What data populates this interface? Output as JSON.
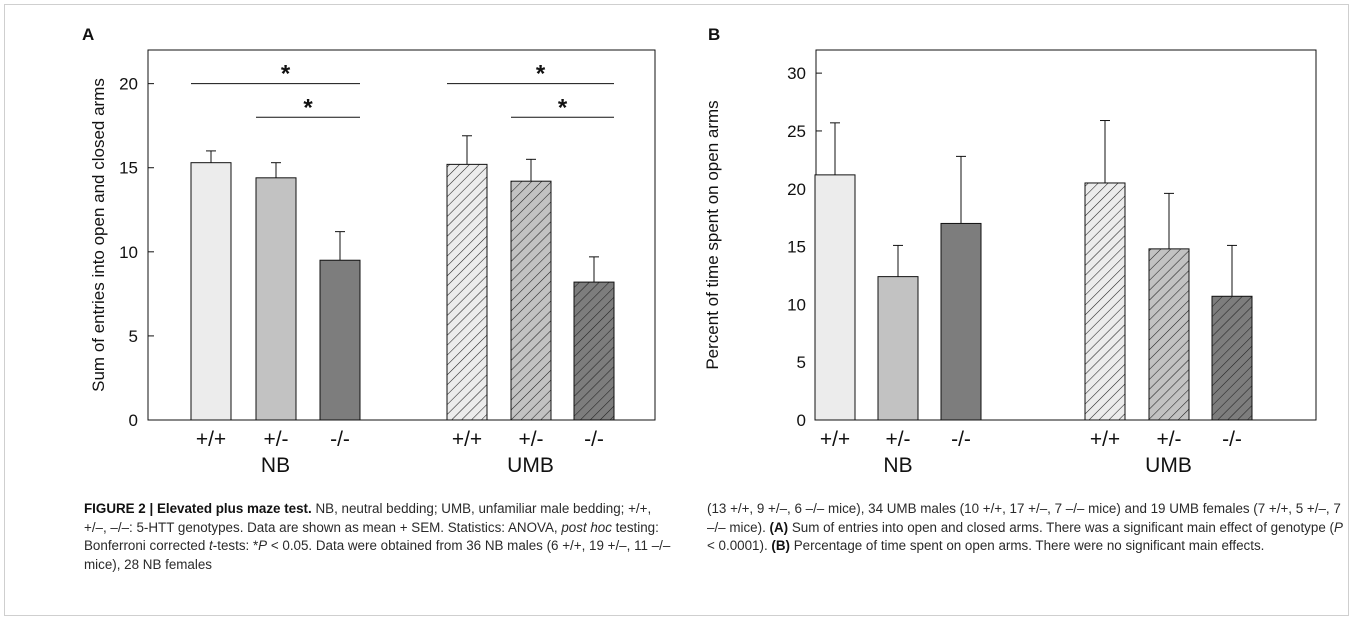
{
  "chart_data": [
    {
      "panel": "A",
      "type": "bar",
      "ylabel": "Sum of entries into open and closed arms",
      "xlabel": "",
      "ylim": [
        0,
        22
      ],
      "yticks": [
        0,
        5,
        10,
        15,
        20
      ],
      "groups": [
        "NB",
        "UMB"
      ],
      "categories": [
        "+/+",
        "+/-",
        "-/-"
      ],
      "bars": [
        {
          "group": "NB",
          "genotype": "+/+",
          "value": 15.3,
          "sem": 0.7,
          "fill": "#ececec",
          "hatch": false
        },
        {
          "group": "NB",
          "genotype": "+/-",
          "value": 14.4,
          "sem": 0.9,
          "fill": "#c2c2c2",
          "hatch": false
        },
        {
          "group": "NB",
          "genotype": "-/-",
          "value": 9.5,
          "sem": 1.7,
          "fill": "#7d7d7d",
          "hatch": false
        },
        {
          "group": "UMB",
          "genotype": "+/+",
          "value": 15.2,
          "sem": 1.7,
          "fill": "#ececec",
          "hatch": true
        },
        {
          "group": "UMB",
          "genotype": "+/-",
          "value": 14.2,
          "sem": 1.3,
          "fill": "#c2c2c2",
          "hatch": true
        },
        {
          "group": "UMB",
          "genotype": "-/-",
          "value": 8.2,
          "sem": 1.5,
          "fill": "#7d7d7d",
          "hatch": true
        }
      ],
      "significance": [
        {
          "group": "NB",
          "from": "+/+",
          "to": "-/-",
          "y": 20,
          "label": "*"
        },
        {
          "group": "NB",
          "from": "+/-",
          "to": "-/-",
          "y": 18,
          "label": "*"
        },
        {
          "group": "UMB",
          "from": "+/+",
          "to": "-/-",
          "y": 20,
          "label": "*"
        },
        {
          "group": "UMB",
          "from": "+/-",
          "to": "-/-",
          "y": 18,
          "label": "*"
        }
      ],
      "grid": false
    },
    {
      "panel": "B",
      "type": "bar",
      "ylabel": "Percent of time spent on open arms",
      "xlabel": "",
      "ylim": [
        0,
        32
      ],
      "yticks": [
        0,
        5,
        10,
        15,
        20,
        25,
        30
      ],
      "groups": [
        "NB",
        "UMB"
      ],
      "categories": [
        "+/+",
        "+/-",
        "-/-"
      ],
      "bars": [
        {
          "group": "NB",
          "genotype": "+/+",
          "value": 21.2,
          "sem": 4.5,
          "fill": "#ececec",
          "hatch": false
        },
        {
          "group": "NB",
          "genotype": "+/-",
          "value": 12.4,
          "sem": 2.7,
          "fill": "#c2c2c2",
          "hatch": false
        },
        {
          "group": "NB",
          "genotype": "-/-",
          "value": 17.0,
          "sem": 5.8,
          "fill": "#7d7d7d",
          "hatch": false
        },
        {
          "group": "UMB",
          "genotype": "+/+",
          "value": 20.5,
          "sem": 5.4,
          "fill": "#ececec",
          "hatch": true
        },
        {
          "group": "UMB",
          "genotype": "+/-",
          "value": 14.8,
          "sem": 4.8,
          "fill": "#c2c2c2",
          "hatch": true
        },
        {
          "group": "UMB",
          "genotype": "-/-",
          "value": 10.7,
          "sem": 4.4,
          "fill": "#7d7d7d",
          "hatch": true
        }
      ],
      "significance": [],
      "grid": false
    }
  ],
  "caption": {
    "title": "FIGURE 2 | Elevated plus maze test.",
    "left_1": " NB, neutral bedding; UMB, unfamiliar male bedding; +/+, +/–, –/–: 5-HTT genotypes. Data are shown as mean + SEM. Statistics: ANOVA, ",
    "left_posthoc": "post hoc",
    "left_2": " testing: Bonferroni corrected ",
    "left_t": "t",
    "left_3": "-tests: *",
    "left_p": "P",
    "left_4": " < 0.05. Data were obtained from 36 NB males (6 +/+, 19 +/–, 11 –/– mice), 28 NB females",
    "right_1": "(13 +/+, 9 +/–, 6 –/– mice), 34 UMB males (10 +/+, 17 +/–, 7 –/– mice) and 19 UMB females (7 +/+, 5 +/–, 7 –/– mice). ",
    "right_A": "(A)",
    "right_2": " Sum of entries into open and closed arms. There was a significant main effect of genotype (",
    "right_p": "P",
    "right_3": " < 0.0001). ",
    "right_B": "(B)",
    "right_4": " Percentage of time spent on open arms. There were no significant main effects."
  }
}
